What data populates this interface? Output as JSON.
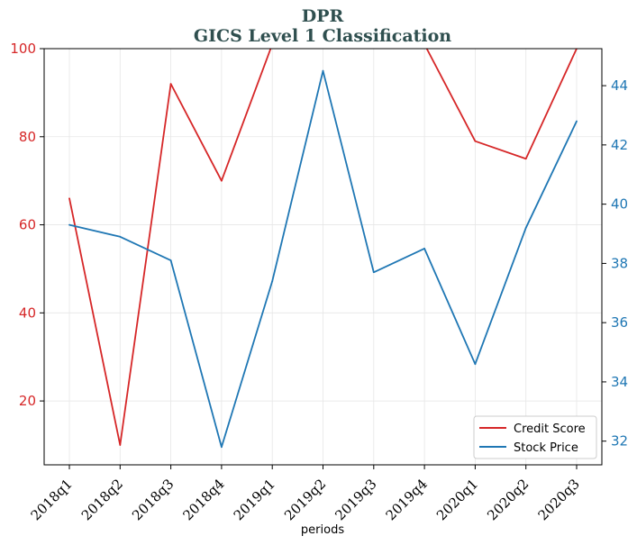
{
  "chart_data": {
    "type": "line",
    "title": "DPR",
    "subtitle": "GICS Level 1 Classification",
    "xlabel": "periods",
    "ylabel_left": "",
    "ylabel_right": "",
    "categories": [
      "2018q1",
      "2018q2",
      "2018q3",
      "2018q4",
      "2019q1",
      "2019q2",
      "2019q3",
      "2019q4",
      "2020q1",
      "2020q2",
      "2020q3"
    ],
    "series": [
      {
        "name": "Credit Score",
        "axis": "left",
        "color": "#d62728",
        "values": [
          66,
          10,
          92,
          70,
          101,
          104,
          105,
          101,
          79,
          75,
          100
        ]
      },
      {
        "name": "Stock Price",
        "axis": "right",
        "color": "#1f77b4",
        "values": [
          39.3,
          38.9,
          38.1,
          31.8,
          37.4,
          44.5,
          37.7,
          38.5,
          34.6,
          39.2,
          42.8
        ]
      }
    ],
    "ylim_left": [
      5.5,
      100
    ],
    "yticks_left": [
      20,
      40,
      60,
      80,
      100
    ],
    "ylim_right": [
      31.2,
      45.25
    ],
    "yticks_right": [
      32,
      34,
      36,
      38,
      40,
      42,
      44
    ],
    "grid": true,
    "legend_position": "bottom-right"
  }
}
